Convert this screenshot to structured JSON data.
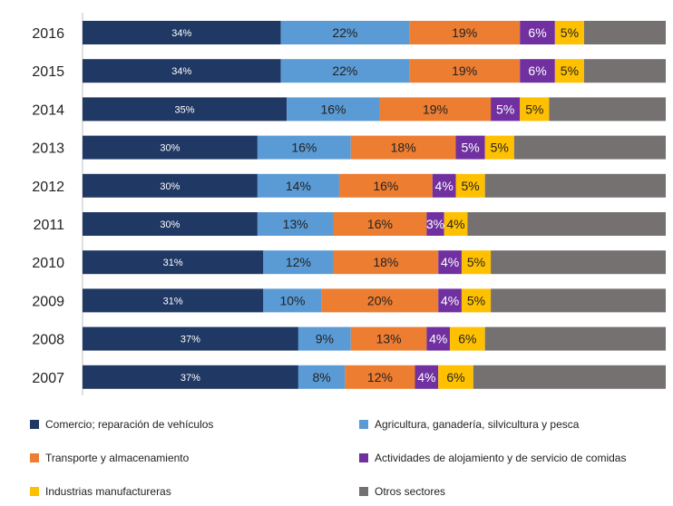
{
  "chart_data": {
    "type": "bar",
    "orientation": "horizontal",
    "stacked": true,
    "normalized": true,
    "categories": [
      "2016",
      "2015",
      "2014",
      "2013",
      "2012",
      "2011",
      "2010",
      "2009",
      "2008",
      "2007"
    ],
    "series": [
      {
        "name": "Comercio; reparación de vehículos",
        "color": "#203864",
        "values": [
          34,
          34,
          35,
          30,
          30,
          30,
          31,
          31,
          37,
          37
        ],
        "labels": [
          "34%",
          "34%",
          "35%",
          "30%",
          "30%",
          "30%",
          "31%",
          "31%",
          "37%",
          "37%"
        ]
      },
      {
        "name": "Agricultura, ganadería, silvicultura y pesca",
        "color": "#5b9bd5",
        "values": [
          22,
          22,
          16,
          16,
          14,
          13,
          12,
          10,
          9,
          8
        ],
        "labels": [
          "22%",
          "22%",
          "16%",
          "16%",
          "14%",
          "13%",
          "12%",
          "10%",
          "9%",
          "8%"
        ]
      },
      {
        "name": "Transporte y almacenamiento",
        "color": "#ed7d31",
        "values": [
          19,
          19,
          19,
          18,
          16,
          16,
          18,
          20,
          13,
          12
        ],
        "labels": [
          "19%",
          "19%",
          "19%",
          "18%",
          "16%",
          "16%",
          "18%",
          "20%",
          "13%",
          "12%"
        ]
      },
      {
        "name": "Actividades de alojamiento y de servicio de comidas",
        "color": "#7030a0",
        "values": [
          6,
          6,
          5,
          5,
          4,
          3,
          4,
          4,
          4,
          4
        ],
        "labels": [
          "6%",
          "6%",
          "5%",
          "5%",
          "4%",
          "3%",
          "4%",
          "4%",
          "4%",
          "4%"
        ]
      },
      {
        "name": "Industrias manufactureras",
        "color": "#ffc000",
        "values": [
          5,
          5,
          5,
          5,
          5,
          4,
          5,
          5,
          6,
          6
        ],
        "labels": [
          "5%",
          "5%",
          "5%",
          "5%",
          "5%",
          "4%",
          "5%",
          "5%",
          "6%",
          "6%"
        ]
      },
      {
        "name": "Otros sectores",
        "color": "#767171",
        "values": [
          14,
          14,
          20,
          26,
          31,
          34,
          30,
          30,
          31,
          33
        ],
        "labels": [
          "",
          "",
          "",
          "",
          "",
          "",
          "",
          "",
          "",
          ""
        ]
      }
    ],
    "xlim": [
      0,
      100
    ],
    "legend_position": "bottom",
    "grid": false
  }
}
